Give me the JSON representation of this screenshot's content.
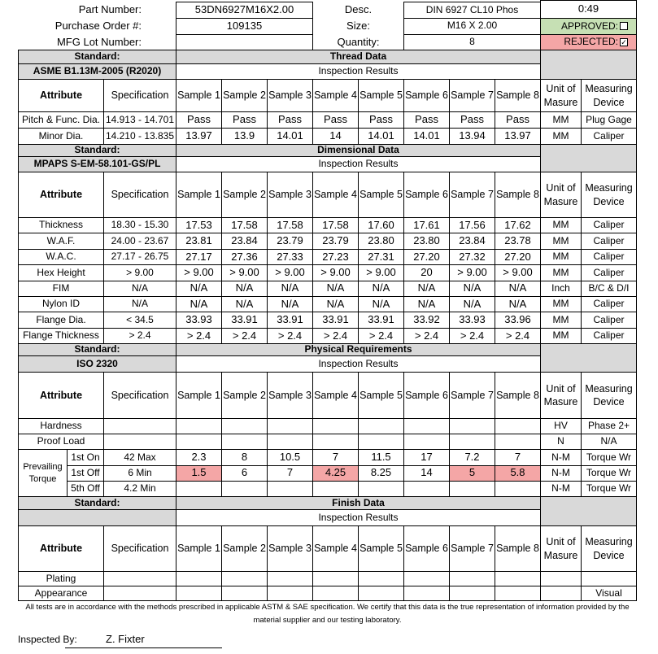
{
  "header": {
    "fields": [
      {
        "label": "Part Number:",
        "value": "53DN6927M16X2.00"
      },
      {
        "label": "Purchase Order #:",
        "value": "109135"
      },
      {
        "label": "MFG Lot Number:",
        "value": ""
      }
    ],
    "right_fields": [
      {
        "label": "Desc.",
        "value": "DIN 6927 CL10 Phos"
      },
      {
        "label": "Size:",
        "value": "M16 X 2.00"
      },
      {
        "label": "Quantity:",
        "value": "8"
      }
    ],
    "timer": "0:49",
    "approved": {
      "label": "APPROVED:",
      "checked": false,
      "color": "#c6e0b4"
    },
    "rejected": {
      "label": "REJECTED:",
      "checked": true,
      "color": "#f4a6a6"
    }
  },
  "sections": [
    {
      "standard_label": "Standard:",
      "title": "Thread Data",
      "standard": "ASME B1.13M-2005 (R2020)",
      "results_label": "Inspection Results",
      "columns": [
        "Attribute",
        "Specification",
        "Sample 1",
        "Sample 2",
        "Sample 3",
        "Sample 4",
        "Sample 5",
        "Sample 6",
        "Sample 7",
        "Sample 8",
        "Unit of Masure",
        "Measuring Device"
      ],
      "rows": [
        {
          "attribute": "Pitch & Func. Dia.",
          "spec": "14.913 - 14.701",
          "samples": [
            "Pass",
            "Pass",
            "Pass",
            "Pass",
            "Pass",
            "Pass",
            "Pass",
            "Pass"
          ],
          "unit": "MM",
          "device": "Plug Gage"
        },
        {
          "attribute": "Minor Dia.",
          "spec": "14.210 - 13.835",
          "samples": [
            "13.97",
            "13.9",
            "14.01",
            "14",
            "14.01",
            "14.01",
            "13.94",
            "13.97"
          ],
          "unit": "MM",
          "device": "Caliper"
        }
      ]
    },
    {
      "standard_label": "Standard:",
      "title": "Dimensional Data",
      "standard": "MPAPS S-EM-58.101-GS/PL",
      "results_label": "Inspection Results",
      "columns": [
        "Attribute",
        "Specification",
        "Sample 1",
        "Sample 2",
        "Sample 3",
        "Sample 4",
        "Sample 5",
        "Sample 6",
        "Sample 7",
        "Sample 8",
        "Unit of Masure",
        "Measuring Device"
      ],
      "rows": [
        {
          "attribute": "Thickness",
          "spec": "18.30 - 15.30",
          "samples": [
            "17.53",
            "17.58",
            "17.58",
            "17.58",
            "17.60",
            "17.61",
            "17.56",
            "17.62"
          ],
          "unit": "MM",
          "device": "Caliper"
        },
        {
          "attribute": "W.A.F.",
          "spec": "24.00 - 23.67",
          "samples": [
            "23.81",
            "23.84",
            "23.79",
            "23.79",
            "23.80",
            "23.80",
            "23.84",
            "23.78"
          ],
          "unit": "MM",
          "device": "Caliper"
        },
        {
          "attribute": "W.A.C.",
          "spec": "27.17 - 26.75",
          "samples": [
            "27.17",
            "27.36",
            "27.33",
            "27.23",
            "27.31",
            "27.20",
            "27.32",
            "27.20"
          ],
          "unit": "MM",
          "device": "Caliper"
        },
        {
          "attribute": "Hex Height",
          "spec": "> 9.00",
          "samples": [
            "> 9.00",
            "> 9.00",
            "> 9.00",
            "> 9.00",
            "> 9.00",
            "20",
            "> 9.00",
            "> 9.00"
          ],
          "unit": "MM",
          "device": "Caliper"
        },
        {
          "attribute": "FIM",
          "spec": "N/A",
          "samples": [
            "N/A",
            "N/A",
            "N/A",
            "N/A",
            "N/A",
            "N/A",
            "N/A",
            "N/A"
          ],
          "unit": "Inch",
          "device": "B/C & D/I"
        },
        {
          "attribute": "Nylon ID",
          "spec": "N/A",
          "samples": [
            "N/A",
            "N/A",
            "N/A",
            "N/A",
            "N/A",
            "N/A",
            "N/A",
            "N/A"
          ],
          "unit": "MM",
          "device": "Caliper"
        },
        {
          "attribute": "Flange Dia.",
          "spec": "< 34.5",
          "samples": [
            "33.93",
            "33.91",
            "33.91",
            "33.91",
            "33.91",
            "33.92",
            "33.93",
            "33.96"
          ],
          "unit": "MM",
          "device": "Caliper"
        },
        {
          "attribute": "Flange Thickness",
          "spec": "> 2.4",
          "samples": [
            "> 2.4",
            "> 2.4",
            "> 2.4",
            "> 2.4",
            "> 2.4",
            "> 2.4",
            "> 2.4",
            "> 2.4"
          ],
          "unit": "MM",
          "device": "Caliper"
        }
      ]
    },
    {
      "standard_label": "Standard:",
      "title": "Physical Requirements",
      "standard": "ISO 2320",
      "results_label": "Inspection Results",
      "columns": [
        "Attribute",
        "Specification",
        "Sample 1",
        "Sample 2",
        "Sample 3",
        "Sample 4",
        "Sample 5",
        "Sample 6",
        "Sample 7",
        "Sample 8",
        "Unit of Masure",
        "Measuring Device"
      ],
      "rows": [
        {
          "attribute": "Hardness",
          "unit": "HV",
          "device": "Phase 2+"
        },
        {
          "attribute": "Proof Load",
          "unit": "N",
          "device": "N/A"
        }
      ],
      "grouped_rows": {
        "label": "Prevailing Torque",
        "flag_color": "#f4a6a6",
        "rows": [
          {
            "attribute": "1st On",
            "spec": "42 Max",
            "samples": [
              "2.3",
              "8",
              "10.5",
              "7",
              "11.5",
              "17",
              "7.2",
              "7"
            ],
            "unit": "N-M",
            "device": "Torque Wr"
          },
          {
            "attribute": "1st Off",
            "spec": "6 Min",
            "samples": [
              "1.5",
              "6",
              "7",
              "4.25",
              "8.25",
              "14",
              "5",
              "5.8"
            ],
            "flagged": [
              true,
              false,
              false,
              true,
              false,
              false,
              true,
              true
            ],
            "unit": "N-M",
            "device": "Torque Wr"
          },
          {
            "attribute": "5th Off",
            "spec": "4.2 Min",
            "unit": "N-M",
            "device": "Torque Wr"
          }
        ]
      }
    },
    {
      "standard_label": "Standard:",
      "title": "Finish Data",
      "results_label": "Inspection Results",
      "columns": [
        "Attribute",
        "Specification",
        "Sample 1",
        "Sample 2",
        "Sample 3",
        "Sample 4",
        "Sample 5",
        "Sample 6",
        "Sample 7",
        "Sample 8",
        "Unit of Masure",
        "Measuring Device"
      ],
      "rows": [
        {
          "attribute": "Plating"
        },
        {
          "attribute": "Appearance",
          "device": "Visual"
        }
      ]
    }
  ],
  "footer": {
    "note": "All tests are in accordance with the methods prescribed in applicable ASTM & SAE specification.  We certify that this data is the true representation of information provided by the material supplier and our testing laboratory.",
    "inspected_by_label": "Inspected By:",
    "inspected_by": "Z. Fixter"
  }
}
